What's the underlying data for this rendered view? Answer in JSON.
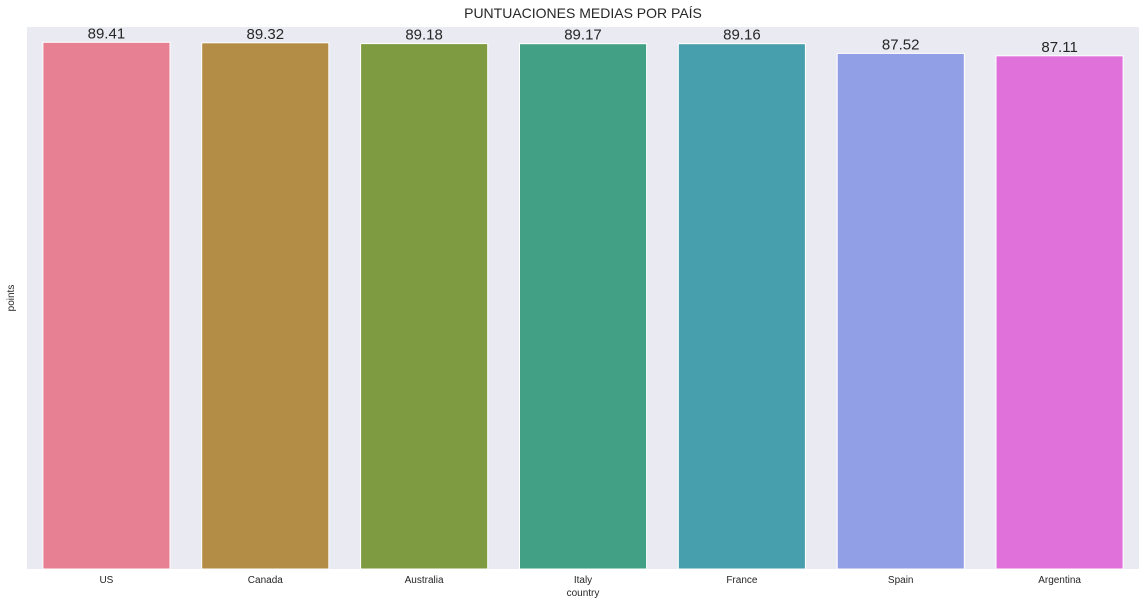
{
  "chart_data": {
    "type": "bar",
    "title": "PUNTUACIONES MEDIAS POR PAÍS",
    "xlabel": "country",
    "ylabel": "points",
    "ylim": [
      0,
      92
    ],
    "grid": false,
    "legend": "none",
    "categories": [
      "US",
      "Canada",
      "Australia",
      "Italy",
      "France",
      "Spain",
      "Argentina"
    ],
    "values": [
      89.41,
      89.32,
      89.18,
      89.17,
      89.16,
      87.52,
      87.11
    ],
    "labels": [
      "89.41",
      "89.32",
      "89.18",
      "89.17",
      "89.16",
      "87.52",
      "87.11"
    ],
    "colors": [
      "#e88094",
      "#b38d45",
      "#7f9b41",
      "#42a085",
      "#479eac",
      "#919fe6",
      "#e071db"
    ],
    "background": "#eaeaf2"
  }
}
